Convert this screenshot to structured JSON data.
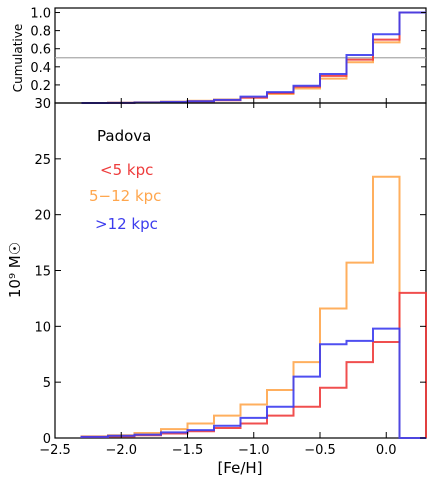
{
  "colors": {
    "inner": "#ee3c3c",
    "middle": "#ffa64d",
    "outer": "#3c3cee",
    "reference_line": "#aaaaaa"
  },
  "chart_data": [
    {
      "type": "step",
      "panel": "cumulative",
      "ylabel": "Cumulative",
      "ylim": [
        0,
        1.05
      ],
      "yticks": [
        "0.2",
        "0.4",
        "0.6",
        "0.8",
        "1.0"
      ],
      "reference_line": 0.5,
      "bin_edges": [
        -2.3,
        -2.1,
        -1.9,
        -1.7,
        -1.5,
        -1.3,
        -1.1,
        -0.9,
        -0.7,
        -0.5,
        -0.3,
        -0.1,
        0.1,
        0.3
      ],
      "series": [
        {
          "key": "inner",
          "values": [
            0.0,
            0.002,
            0.005,
            0.01,
            0.018,
            0.03,
            0.06,
            0.11,
            0.18,
            0.3,
            0.48,
            0.7,
            1.0
          ]
        },
        {
          "key": "middle",
          "values": [
            0.0,
            0.003,
            0.008,
            0.015,
            0.025,
            0.038,
            0.06,
            0.1,
            0.16,
            0.27,
            0.45,
            0.67,
            1.0
          ]
        },
        {
          "key": "outer",
          "values": [
            0.0,
            0.002,
            0.005,
            0.012,
            0.02,
            0.035,
            0.07,
            0.12,
            0.19,
            0.32,
            0.53,
            0.76,
            1.0
          ]
        }
      ]
    },
    {
      "type": "step",
      "panel": "mass",
      "title": "Padova",
      "xlabel": "[Fe/H]",
      "ylabel": "10⁹ M☉",
      "xlim": [
        -2.5,
        0.3
      ],
      "ylim": [
        0,
        30
      ],
      "xticks": [
        "−2.5",
        "−2.0",
        "−1.5",
        "−1.0",
        "−0.5",
        "0.0"
      ],
      "yticks": [
        "0",
        "5",
        "10",
        "15",
        "20",
        "25",
        "30"
      ],
      "bin_edges": [
        -2.3,
        -2.1,
        -1.9,
        -1.7,
        -1.5,
        -1.3,
        -1.1,
        -0.9,
        -0.7,
        -0.5,
        -0.3,
        -0.1,
        0.1,
        0.3
      ],
      "series": [
        {
          "key": "inner",
          "name": "<5 kpc",
          "values": [
            0.1,
            0.15,
            0.25,
            0.4,
            0.6,
            0.9,
            1.3,
            2.0,
            2.8,
            4.5,
            6.8,
            8.6,
            13.0
          ]
        },
        {
          "key": "middle",
          "name": "5−12 kpc",
          "values": [
            0.15,
            0.25,
            0.45,
            0.8,
            1.3,
            2.0,
            3.0,
            4.3,
            6.8,
            11.6,
            15.7,
            23.4,
            0.0
          ]
        },
        {
          "key": "outer",
          "name": ">12 kpc",
          "values": [
            0.1,
            0.2,
            0.3,
            0.5,
            0.7,
            1.1,
            1.8,
            2.8,
            5.5,
            8.4,
            8.7,
            9.8,
            0.0
          ]
        }
      ]
    }
  ]
}
